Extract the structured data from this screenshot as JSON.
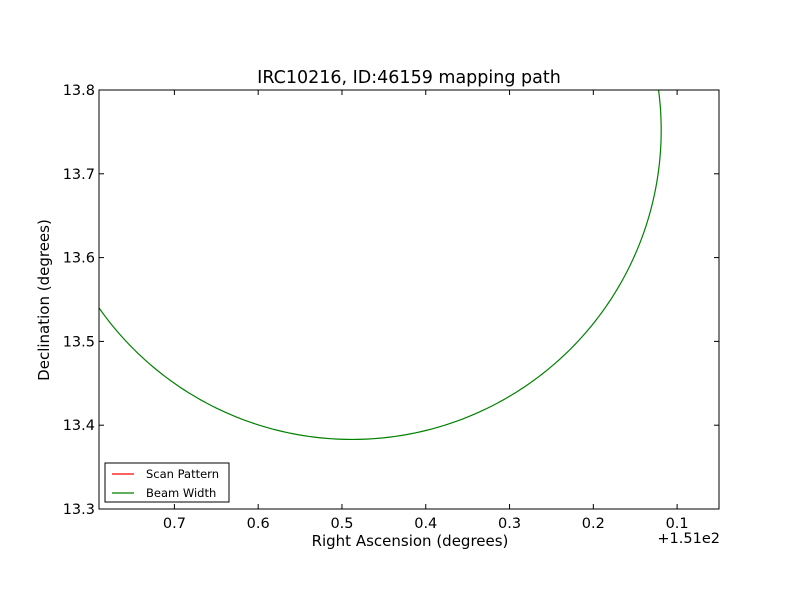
{
  "chart_data": {
    "type": "line",
    "title": "IRC10216, ID:46159 mapping path",
    "xlabel": "Right Ascension (degrees)",
    "ylabel": "Declination (degrees)",
    "x_offset_label": "+1.51e2",
    "xlim": [
      151.79,
      151.05
    ],
    "ylim": [
      13.3,
      13.8
    ],
    "x_inverted": true,
    "xticks": [
      151.7,
      151.6,
      151.5,
      151.4,
      151.3,
      151.2,
      151.1
    ],
    "xtick_labels": [
      "0.7",
      "0.6",
      "0.5",
      "0.4",
      "0.3",
      "0.2",
      "0.1"
    ],
    "yticks": [
      13.3,
      13.4,
      13.5,
      13.6,
      13.7,
      13.8
    ],
    "ytick_labels": [
      "13.3",
      "13.4",
      "13.5",
      "13.6",
      "13.7",
      "13.8"
    ],
    "grid": false,
    "legend_position": "lower-left",
    "series": [
      {
        "name": "Scan Pattern",
        "color": "#ff0000",
        "x": [],
        "y": []
      },
      {
        "name": "Beam Width",
        "color": "#008000",
        "shape": "circle",
        "center": [
          151.488,
          13.752
        ],
        "radius": 0.369
      }
    ]
  }
}
